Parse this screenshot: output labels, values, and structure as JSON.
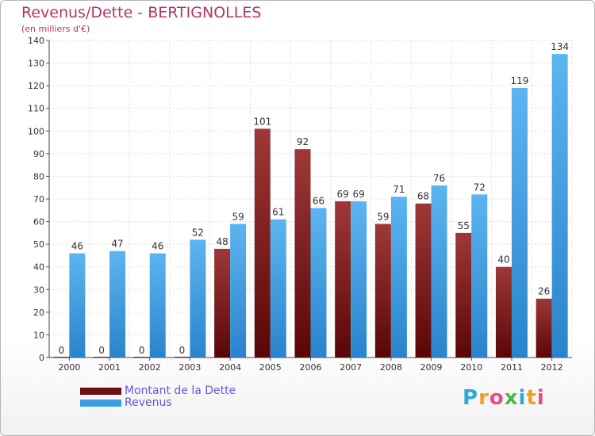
{
  "header": {
    "title": "Revenus/Dette - BERTIGNOLLES",
    "subtitle": "(en milliers d'€)"
  },
  "chart_data": {
    "type": "bar",
    "title": "Revenus/Dette - BERTIGNOLLES",
    "subtitle": "(en milliers d'€)",
    "categories": [
      "2000",
      "2001",
      "2002",
      "2003",
      "2004",
      "2005",
      "2006",
      "2007",
      "2008",
      "2009",
      "2010",
      "2011",
      "2012"
    ],
    "series": [
      {
        "name": "Montant de la Dette",
        "color": "#7a1a1a",
        "values": [
          0,
          0,
          0,
          0,
          48,
          101,
          92,
          69,
          59,
          68,
          55,
          40,
          26
        ]
      },
      {
        "name": "Revenus",
        "color": "#3d9be0",
        "values": [
          46,
          47,
          46,
          52,
          59,
          61,
          66,
          69,
          71,
          76,
          72,
          119,
          134
        ]
      }
    ],
    "ylim": [
      0,
      140
    ],
    "yticks": [
      0,
      10,
      20,
      30,
      40,
      50,
      60,
      70,
      80,
      90,
      100,
      110,
      120,
      130,
      140
    ],
    "grid": true,
    "legend_position": "bottom-left"
  },
  "legend": {
    "items": [
      {
        "label": "Montant de la Dette",
        "color": "#6b0f0f"
      },
      {
        "label": "Revenus",
        "color": "#3d9be0"
      }
    ]
  },
  "brand": {
    "letters": [
      "P",
      "r",
      "o",
      "x",
      "i",
      "t",
      "i"
    ],
    "colors": [
      "#2fa8d8",
      "#f0a020",
      "#e84a8a",
      "#4ab848",
      "#2fa8d8",
      "#f0a020",
      "#e84a8a"
    ]
  }
}
